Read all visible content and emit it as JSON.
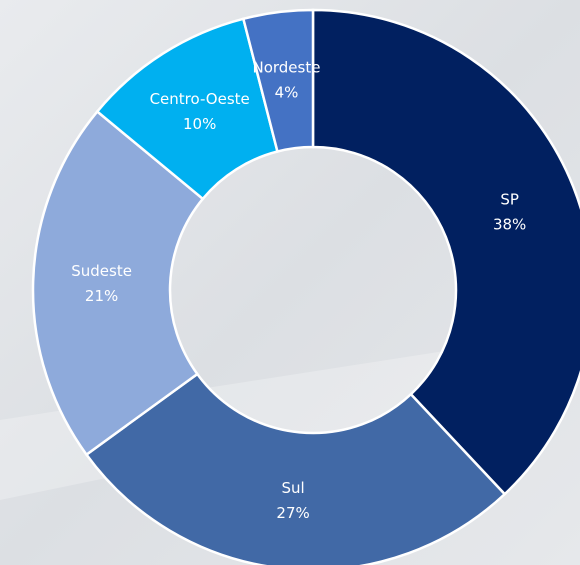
{
  "chart_data": {
    "type": "donut",
    "categories": [
      "SP",
      "Sul",
      "Sudeste",
      "Centro-Oeste",
      "Nordeste"
    ],
    "values": [
      38,
      27,
      21,
      10,
      4
    ],
    "value_labels": [
      "38%",
      "27%",
      "21%",
      "10%",
      "4%"
    ],
    "colors": [
      "#012060",
      "#4169a6",
      "#8eaadb",
      "#00b0f0",
      "#4472c4"
    ]
  }
}
